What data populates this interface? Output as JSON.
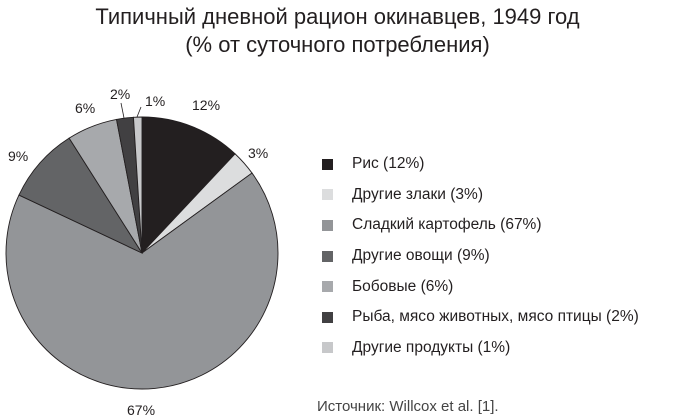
{
  "chart_data": {
    "type": "pie",
    "title": "Типичный дневной рацион окинавцев, 1949 год",
    "subtitle": "(% от суточного потребления)",
    "categories": [
      "Рис",
      "Другие злаки",
      "Сладкий картофель",
      "Другие овощи",
      "Бобовые",
      "Рыба, мясо животных, мясо птицы",
      "Другие продукты"
    ],
    "values": [
      12,
      3,
      67,
      9,
      6,
      2,
      1
    ],
    "colors": [
      "#231f20",
      "#dcddde",
      "#939598",
      "#636466",
      "#a7a9ac",
      "#414042",
      "#c7c8ca"
    ],
    "slice_labels": [
      "12%",
      "3%",
      "67%",
      "9%",
      "6%",
      "2%",
      "1%"
    ],
    "legend": [
      "Рис (12%)",
      "Другие злаки (3%)",
      "Сладкий картофель (67%)",
      "Другие овощи (9%)",
      "Бобовые (6%)",
      "Рыба, мясо животных, мясо птицы (2%)",
      "Другие продукты (1%)"
    ],
    "legend_position": "right",
    "start_angle": "12 o'clock, clockwise",
    "source": "Источник: Willcox et al. [1]."
  }
}
